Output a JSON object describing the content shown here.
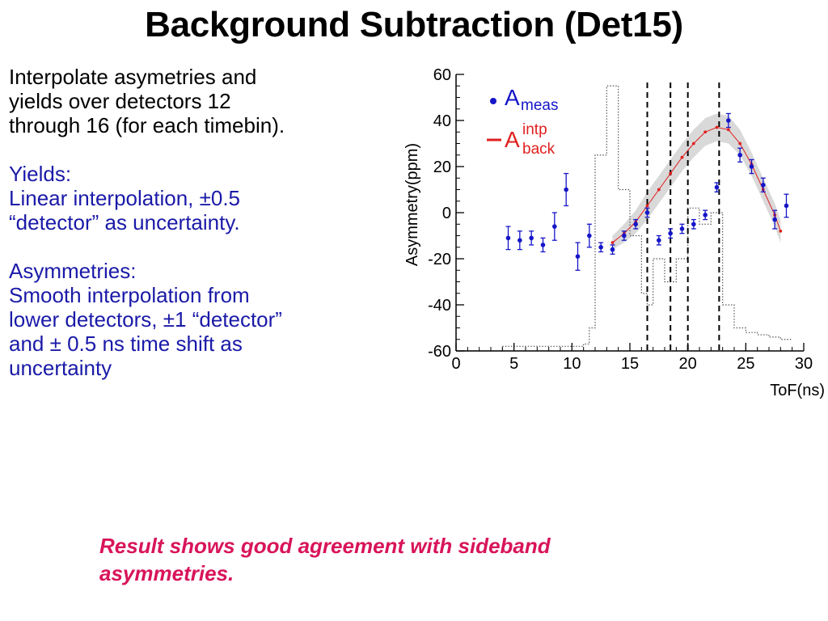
{
  "slide": {
    "title": "Background Subtraction (Det15)",
    "intro_lines": [
      "Interpolate asymetries and",
      "yields over detectors 12",
      "through 16 (for each timebin)."
    ],
    "yields_heading": "Yields:",
    "yields_lines": [
      "Linear interpolation, ±0.5",
      "“detector” as uncertainty."
    ],
    "asym_heading": "Asymmetries:",
    "asym_lines": [
      "Smooth interpolation from",
      "lower detectors, ±1 “detector”",
      "and ± 0.5 ns time shift as",
      "uncertainty"
    ],
    "result_lines": [
      "Result shows good agreement with sideband",
      "asymmetries."
    ]
  },
  "colors": {
    "text_blue": "#1a1aa8",
    "result_red": "#d8145a",
    "meas_blue": "#1515c8",
    "interp_red": "#e02020",
    "band_gray": "#d9d9d9"
  },
  "chart_data": {
    "type": "scatter",
    "xlabel": "ToF(ns)",
    "ylabel": "Asymmetry(ppm)",
    "xlim": [
      0,
      30
    ],
    "ylim": [
      -60,
      60
    ],
    "xticks": [
      0,
      5,
      10,
      15,
      20,
      25,
      30
    ],
    "yticks": [
      -60,
      -40,
      -20,
      0,
      20,
      40,
      60
    ],
    "legend": {
      "position": "top-left",
      "entries": [
        {
          "base": "A",
          "sub": "meas",
          "sup": "",
          "style": "marker",
          "color": "#1515c8"
        },
        {
          "base": "A",
          "sub": "back",
          "sup": "intp",
          "style": "line",
          "color": "#e02020"
        }
      ]
    },
    "measured": {
      "x": [
        4.5,
        5.5,
        6.5,
        7.5,
        8.5,
        9.5,
        10.5,
        11.5,
        12.5,
        13.5,
        14.5,
        15.5,
        16.5,
        17.5,
        18.5,
        19.5,
        20.5,
        21.5,
        22.5,
        23.5,
        24.5,
        25.5,
        26.5,
        27.5,
        28.5
      ],
      "y": [
        -11,
        -12,
        -11,
        -14,
        -6,
        10,
        -19,
        -10,
        -15,
        -16,
        -10,
        -5,
        0,
        -12,
        -9,
        -7,
        -5,
        -1,
        11,
        40,
        25,
        20,
        12,
        -3,
        3
      ],
      "err": [
        5,
        4,
        3,
        3,
        6,
        7,
        6,
        5,
        2,
        2,
        2,
        2,
        2,
        2,
        2,
        2,
        2,
        2,
        2,
        3,
        3,
        3,
        3,
        4,
        5
      ]
    },
    "interpolated": {
      "x": [
        13.5,
        14.5,
        15.5,
        16.5,
        17.5,
        18.5,
        19.5,
        20.5,
        21.5,
        22.5,
        23.5,
        24.5,
        25.5,
        26.5,
        27.5,
        28.0
      ],
      "y": [
        -13,
        -9,
        -4,
        3,
        10,
        17,
        24,
        30,
        35,
        37,
        36,
        30,
        21,
        10,
        -1,
        -8
      ]
    },
    "band": {
      "x": [
        13.5,
        14.5,
        15.5,
        16.5,
        17.5,
        18.5,
        19.5,
        20.5,
        21.5,
        22.5,
        23.5,
        24.5,
        25.5,
        26.5,
        27.5,
        28.0
      ],
      "low": [
        -16,
        -13,
        -9,
        -3,
        4,
        11,
        18,
        24,
        29,
        31,
        30,
        25,
        16,
        5,
        -6,
        -13
      ],
      "high": [
        -10,
        -5,
        1,
        9,
        16,
        23,
        30,
        36,
        41,
        43,
        42,
        36,
        26,
        15,
        4,
        -3
      ]
    },
    "vlines": [
      16.5,
      18.5,
      20,
      22.7
    ],
    "yield_histogram": {
      "edges": [
        0,
        4,
        5,
        6,
        7,
        8,
        9,
        10,
        11,
        11.5,
        12,
        13,
        14,
        15,
        16,
        16.5,
        17,
        18,
        19,
        20,
        21,
        22,
        23,
        24,
        25,
        26,
        27,
        28,
        29
      ],
      "y": [
        -60,
        -58,
        -58,
        -58,
        -58,
        -58,
        -58,
        -58,
        -57,
        -50,
        25,
        55,
        10,
        -10,
        -35,
        -40,
        -20,
        -30,
        -20,
        2,
        -5,
        0,
        -40,
        -50,
        -52,
        -53,
        -54,
        -55
      ]
    }
  }
}
